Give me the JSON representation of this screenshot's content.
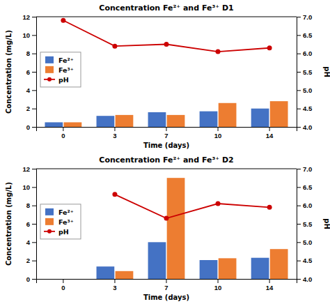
{
  "chart_data": [
    {
      "type": "bar",
      "title": "Concentration Fe²⁺ and Fe³⁺ D1",
      "xlabel": "Time (days)",
      "ylabel": "Concentration (mg/L)",
      "y2label": "pH",
      "categories": [
        "0",
        "3",
        "7",
        "10",
        "14"
      ],
      "series": [
        {
          "name": "Fe²⁺",
          "type": "bar",
          "color": "#4472c4",
          "values": [
            0.5,
            1.2,
            1.6,
            1.7,
            2.0
          ]
        },
        {
          "name": "Fe³⁺",
          "type": "bar",
          "color": "#ed7d31",
          "values": [
            0.5,
            1.3,
            1.3,
            2.6,
            2.8
          ]
        },
        {
          "name": "pH",
          "type": "line",
          "axis": "y2",
          "color": "#cc0000",
          "marker": "circle",
          "line_style": "solid",
          "values": [
            6.9,
            6.2,
            6.25,
            6.05,
            6.15
          ]
        }
      ],
      "ylim": [
        0,
        12
      ],
      "yticks": [
        0,
        2,
        4,
        6,
        8,
        10,
        12
      ],
      "y2lim": [
        4.0,
        7.0
      ],
      "y2ticks": [
        {
          "value": 4.0,
          "label": "4.0"
        },
        4.5,
        {
          "value": 5.0,
          "label": "5.0"
        },
        5.5,
        {
          "value": 6.0,
          "label": "6.0"
        },
        6.5,
        {
          "value": 7.0,
          "label": "7.0"
        }
      ],
      "legend": "left",
      "grid": false
    },
    {
      "type": "bar",
      "title": "Concentration Fe²⁺ and Fe³⁺ D2",
      "xlabel": "Time (days)",
      "ylabel": "Concentration (mg/L)",
      "y2label": "pH",
      "categories": [
        "0",
        "3",
        "7",
        "10",
        "14"
      ],
      "series": [
        {
          "name": "Fe²⁺",
          "type": "bar",
          "color": "#4472c4",
          "values": [
            0.0,
            1.35,
            4.0,
            2.05,
            2.3
          ]
        },
        {
          "name": "Fe³⁺",
          "type": "bar",
          "color": "#ed7d31",
          "values": [
            0.0,
            0.85,
            11.0,
            2.25,
            3.25
          ]
        },
        {
          "name": "pH",
          "type": "line",
          "axis": "y2",
          "color": "#cc0000",
          "marker": "circle",
          "line_style": "solid",
          "values": [
            null,
            6.3,
            5.65,
            6.05,
            5.95
          ]
        }
      ],
      "ylim": [
        0,
        12
      ],
      "yticks": [
        0,
        2,
        4,
        6,
        8,
        10,
        12
      ],
      "y2lim": [
        4.0,
        7.0
      ],
      "y2ticks": [
        {
          "value": 4.0,
          "label": "4.0"
        },
        4.5,
        {
          "value": 5.0,
          "label": "5.0"
        },
        5.5,
        {
          "value": 6.0,
          "label": "6.0"
        },
        6.5,
        {
          "value": 7.0,
          "label": "7.0"
        }
      ],
      "legend": "left",
      "grid": false
    }
  ]
}
